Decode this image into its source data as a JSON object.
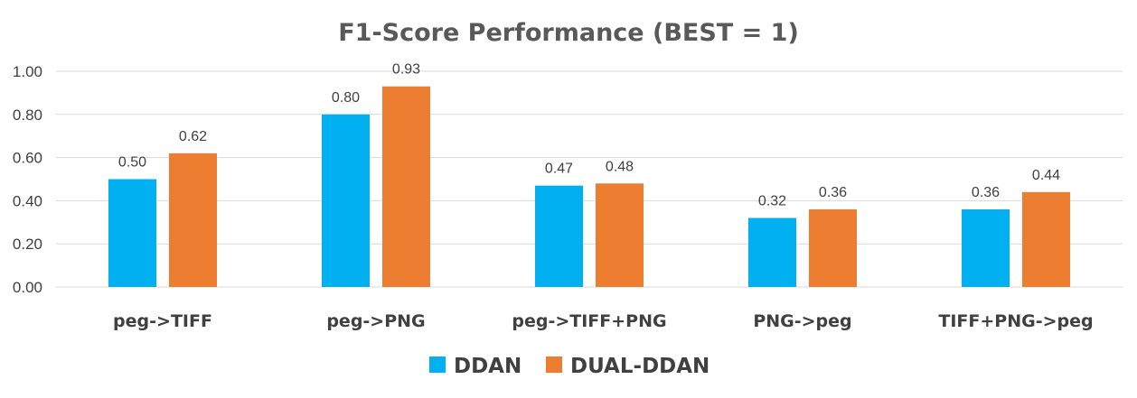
{
  "chart_data": {
    "type": "bar",
    "title": "F1-Score Performance (BEST = 1)",
    "xlabel": "",
    "ylabel": "",
    "ylim": [
      0,
      1
    ],
    "yticks": [
      0,
      0.2,
      0.4,
      0.6,
      0.8,
      1.0
    ],
    "ytick_labels": [
      "0.00",
      "0.20",
      "0.40",
      "0.60",
      "0.80",
      "1.00"
    ],
    "grid": true,
    "legend_position": "bottom",
    "categories": [
      "peg->TIFF",
      "peg->PNG",
      "peg->TIFF+PNG",
      "PNG->peg",
      "TIFF+PNG->peg"
    ],
    "series": [
      {
        "name": "DDAN",
        "color": "#00b0f0",
        "values": [
          0.5,
          0.8,
          0.47,
          0.32,
          0.36
        ],
        "labels": [
          "0.50",
          "0.80",
          "0.47",
          "0.32",
          "0.36"
        ]
      },
      {
        "name": "DUAL-DDAN",
        "color": "#ed7d31",
        "values": [
          0.62,
          0.93,
          0.48,
          0.36,
          0.44
        ],
        "labels": [
          "0.62",
          "0.93",
          "0.48",
          "0.36",
          "0.44"
        ]
      }
    ]
  }
}
